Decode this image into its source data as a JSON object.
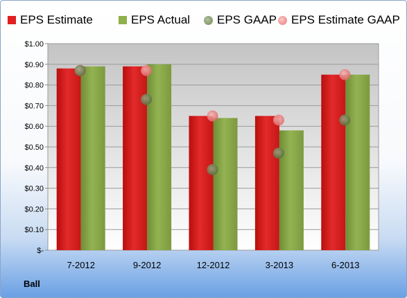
{
  "company": "Ball",
  "colors": {
    "eps_estimate": "#e02020",
    "eps_actual": "#8fb04a",
    "eps_gaap": "#6f8a52",
    "eps_estimate_gaap": "#f08a8a"
  },
  "chart_data": {
    "type": "bar",
    "categories": [
      "7-2012",
      "9-2012",
      "12-2012",
      "3-2013",
      "6-2013"
    ],
    "series": [
      {
        "name": "EPS Estimate",
        "kind": "bar",
        "values": [
          0.88,
          0.89,
          0.65,
          0.65,
          0.85
        ]
      },
      {
        "name": "EPS Actual",
        "kind": "bar",
        "values": [
          0.89,
          0.9,
          0.64,
          0.58,
          0.85
        ]
      },
      {
        "name": "EPS GAAP",
        "kind": "point",
        "values": [
          0.87,
          0.73,
          0.39,
          0.47,
          0.63
        ]
      },
      {
        "name": "EPS Estimate GAAP",
        "kind": "point",
        "values": [
          0.87,
          0.87,
          0.65,
          0.63,
          0.85
        ]
      }
    ],
    "ylim": [
      0,
      1.0
    ],
    "yticks": [
      "$-",
      "$0.10",
      "$0.20",
      "$0.30",
      "$0.40",
      "$0.50",
      "$0.60",
      "$0.70",
      "$0.80",
      "$0.90",
      "$1.00"
    ],
    "grid": true,
    "legend_position": "top"
  }
}
